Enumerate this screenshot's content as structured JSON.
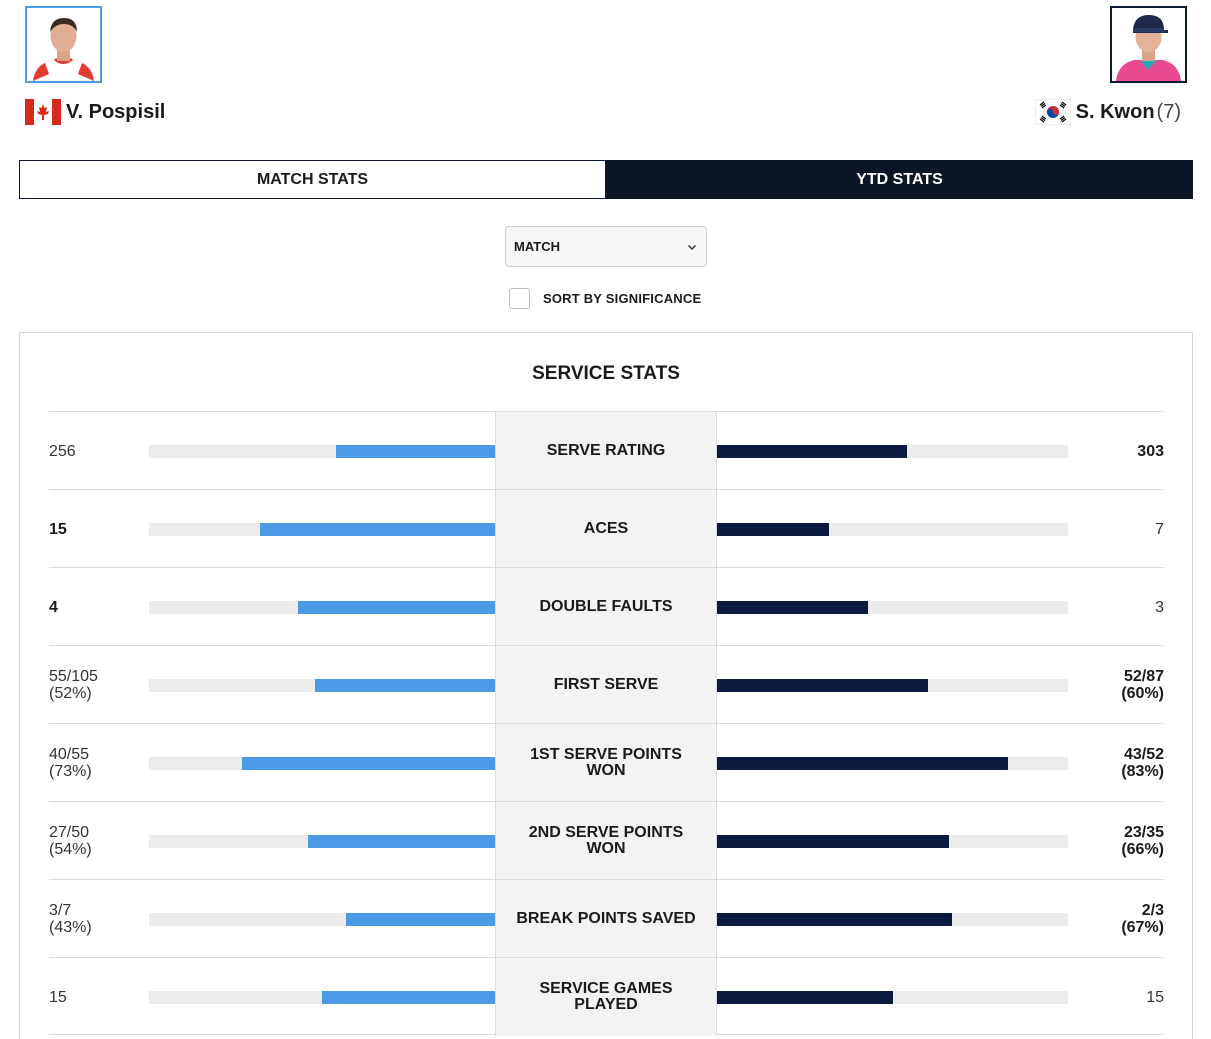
{
  "players": {
    "left": {
      "name": "V. Pospisil",
      "flag": "canada-flag",
      "seed": ""
    },
    "right": {
      "name": "S. Kwon",
      "flag": "south-korea-flag",
      "seed": "(7)"
    }
  },
  "tabs": [
    {
      "label": "MATCH STATS",
      "active": false
    },
    {
      "label": "YTD STATS",
      "active": true
    }
  ],
  "filter": {
    "selected": "MATCH"
  },
  "sort": {
    "label": "SORT BY SIGNIFICANCE",
    "checked": false
  },
  "section": {
    "title": "SERVICE STATS"
  },
  "colors": {
    "left_bar": "#4a9ae8",
    "right_bar": "#0c1a3f",
    "active_tab": "#0c1626"
  },
  "stats": [
    {
      "label": "SERVE RATING",
      "left": "256",
      "left_sub": "",
      "right": "303",
      "right_sub": "",
      "bold": "right",
      "left_pct": 0.46,
      "right_pct": 0.54
    },
    {
      "label": "ACES",
      "left": "15",
      "left_sub": "",
      "right": "7",
      "right_sub": "",
      "bold": "left",
      "left_pct": 0.68,
      "right_pct": 0.32
    },
    {
      "label": "DOUBLE FAULTS",
      "left": "4",
      "left_sub": "",
      "right": "3",
      "right_sub": "",
      "bold": "left",
      "left_pct": 0.57,
      "right_pct": 0.43
    },
    {
      "label": "FIRST SERVE",
      "left": "55/105",
      "left_sub": "(52%)",
      "right": "52/87",
      "right_sub": "(60%)",
      "bold": "right",
      "left_pct": 0.52,
      "right_pct": 0.6
    },
    {
      "label": "1ST SERVE POINTS WON",
      "left": "40/55",
      "left_sub": "(73%)",
      "right": "43/52",
      "right_sub": "(83%)",
      "bold": "right",
      "left_pct": 0.73,
      "right_pct": 0.83
    },
    {
      "label": "2ND SERVE POINTS WON",
      "left": "27/50",
      "left_sub": "(54%)",
      "right": "23/35",
      "right_sub": "(66%)",
      "bold": "right",
      "left_pct": 0.54,
      "right_pct": 0.66
    },
    {
      "label": "BREAK POINTS SAVED",
      "left": "3/7",
      "left_sub": "(43%)",
      "right": "2/3",
      "right_sub": "(67%)",
      "bold": "right",
      "left_pct": 0.43,
      "right_pct": 0.67
    },
    {
      "label": "SERVICE GAMES PLAYED",
      "left": "15",
      "left_sub": "",
      "right": "15",
      "right_sub": "",
      "bold": "none",
      "left_pct": 0.5,
      "right_pct": 0.5
    }
  ]
}
